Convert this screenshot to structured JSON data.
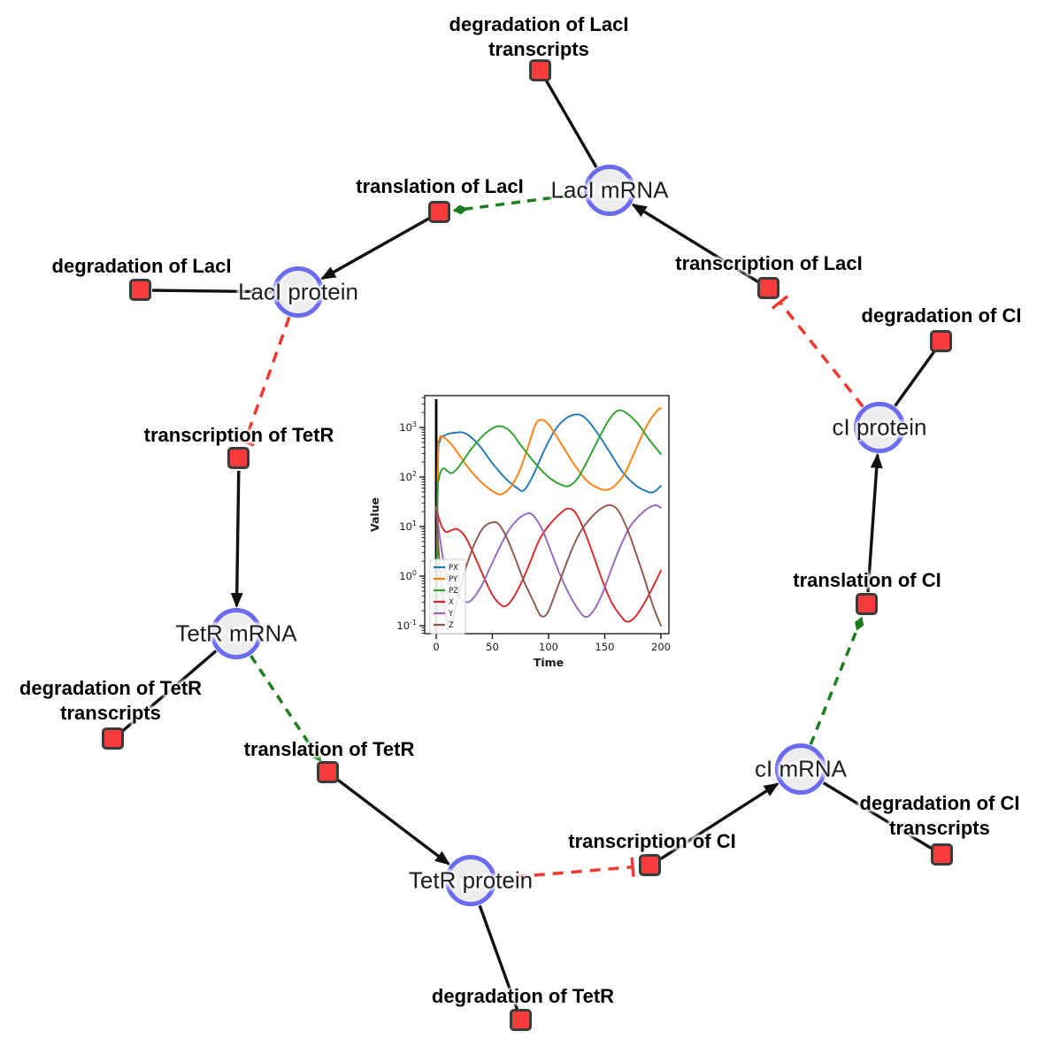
{
  "app": {
    "background": "#ffffff"
  },
  "colors": {
    "species_fill": "#ededed",
    "species_border": "#6b6bf0",
    "reaction_fill": "#f93b3b",
    "reaction_border": "#3a3a3a",
    "edge_black": "#111111",
    "edge_catalysis_green": "#1e7d1e",
    "edge_inhibition_red": "#f03830"
  },
  "diagram": {
    "species": [
      {
        "id": "laci-mrna",
        "label": "LacI mRNA"
      },
      {
        "id": "laci-protein",
        "label": "LacI protein"
      },
      {
        "id": "tetr-mrna",
        "label": "TetR mRNA"
      },
      {
        "id": "tetr-protein",
        "label": "TetR protein"
      },
      {
        "id": "ci-mrna",
        "label": "cI mRNA"
      },
      {
        "id": "ci-protein",
        "label": "cI protein"
      }
    ],
    "reactions": [
      {
        "id": "deg-laci-tx",
        "label_lines": [
          "degradation of LacI",
          "transcripts"
        ]
      },
      {
        "id": "translation-laci",
        "label_lines": [
          "translation of LacI"
        ]
      },
      {
        "id": "transcription-laci",
        "label_lines": [
          "transcription of LacI"
        ]
      },
      {
        "id": "deg-laci",
        "label_lines": [
          "degradation of LacI"
        ]
      },
      {
        "id": "transcription-tetr",
        "label_lines": [
          "transcription of TetR"
        ]
      },
      {
        "id": "deg-tetr-tx",
        "label_lines": [
          "degradation of TetR",
          "transcripts"
        ]
      },
      {
        "id": "translation-tetr",
        "label_lines": [
          "translation of TetR"
        ]
      },
      {
        "id": "deg-tetr",
        "label_lines": [
          "degradation of TetR"
        ]
      },
      {
        "id": "transcription-ci",
        "label_lines": [
          "transcription of CI"
        ]
      },
      {
        "id": "deg-ci-tx",
        "label_lines": [
          "degradation of CI",
          "transcripts"
        ]
      },
      {
        "id": "translation-ci",
        "label_lines": [
          "translation of CI"
        ]
      },
      {
        "id": "deg-ci",
        "label_lines": [
          "degradation of CI"
        ]
      }
    ],
    "edges": [
      {
        "from": "laci-mrna",
        "to": "deg-laci-tx",
        "type": "link"
      },
      {
        "from": "laci-mrna",
        "to": "translation-laci",
        "type": "catalysis"
      },
      {
        "from": "transcription-laci",
        "to": "laci-mrna",
        "type": "production"
      },
      {
        "from": "translation-laci",
        "to": "laci-protein",
        "type": "production"
      },
      {
        "from": "laci-protein",
        "to": "deg-laci",
        "type": "link"
      },
      {
        "from": "laci-protein",
        "to": "transcription-tetr",
        "type": "inhibition"
      },
      {
        "from": "transcription-tetr",
        "to": "tetr-mrna",
        "type": "production"
      },
      {
        "from": "tetr-mrna",
        "to": "deg-tetr-tx",
        "type": "link"
      },
      {
        "from": "tetr-mrna",
        "to": "translation-tetr",
        "type": "catalysis"
      },
      {
        "from": "translation-tetr",
        "to": "tetr-protein",
        "type": "production"
      },
      {
        "from": "tetr-protein",
        "to": "deg-tetr",
        "type": "link"
      },
      {
        "from": "tetr-protein",
        "to": "transcription-ci",
        "type": "inhibition"
      },
      {
        "from": "transcription-ci",
        "to": "ci-mrna",
        "type": "production"
      },
      {
        "from": "ci-mrna",
        "to": "deg-ci-tx",
        "type": "link"
      },
      {
        "from": "ci-mrna",
        "to": "translation-ci",
        "type": "catalysis"
      },
      {
        "from": "translation-ci",
        "to": "ci-protein",
        "type": "production"
      },
      {
        "from": "ci-protein",
        "to": "deg-ci",
        "type": "link"
      },
      {
        "from": "ci-protein",
        "to": "transcription-laci",
        "type": "inhibition"
      }
    ]
  },
  "chart_data": {
    "type": "line",
    "title": "",
    "xlabel": "Time",
    "ylabel": "Value",
    "y_scale": "log10",
    "x_ticks": [
      0,
      50,
      100,
      150,
      200
    ],
    "y_tick_exponents": [
      -1,
      0,
      1,
      2,
      3
    ],
    "xlim": [
      -10,
      209
    ],
    "ylim_log10": [
      -1.16,
      3.61
    ],
    "axvline_x": 0,
    "grid": false,
    "legend": {
      "position": "lower left",
      "entries": [
        "PX",
        "PY",
        "PZ",
        "X",
        "Y",
        "Z"
      ]
    },
    "series": [
      {
        "name": "PX",
        "color": "#1f77b4",
        "points": [
          [
            0.4,
            0.03
          ],
          [
            1.5,
            150
          ],
          [
            3.5,
            540
          ],
          [
            8,
            700
          ],
          [
            16,
            780
          ],
          [
            26,
            760
          ],
          [
            38,
            440
          ],
          [
            50,
            190
          ],
          [
            62,
            92
          ],
          [
            72,
            60
          ],
          [
            78,
            54
          ],
          [
            86,
            105
          ],
          [
            96,
            340
          ],
          [
            106,
            900
          ],
          [
            116,
            1550
          ],
          [
            126,
            1830
          ],
          [
            134,
            1450
          ],
          [
            144,
            740
          ],
          [
            154,
            330
          ],
          [
            166,
            125
          ],
          [
            177,
            70
          ],
          [
            186,
            53
          ],
          [
            193,
            49
          ],
          [
            200,
            66
          ]
        ]
      },
      {
        "name": "PY",
        "color": "#ff7f0e",
        "points": [
          [
            0.4,
            0.03
          ],
          [
            1.3,
            170
          ],
          [
            3,
            580
          ],
          [
            6,
            640
          ],
          [
            12,
            500
          ],
          [
            20,
            290
          ],
          [
            30,
            140
          ],
          [
            42,
            72
          ],
          [
            52,
            49
          ],
          [
            58,
            45
          ],
          [
            66,
            62
          ],
          [
            74,
            130
          ],
          [
            82,
            420
          ],
          [
            88,
            1100
          ],
          [
            93,
            1430
          ],
          [
            100,
            1150
          ],
          [
            110,
            520
          ],
          [
            122,
            190
          ],
          [
            134,
            85
          ],
          [
            144,
            60
          ],
          [
            151,
            55
          ],
          [
            158,
            64
          ],
          [
            168,
            120
          ],
          [
            178,
            380
          ],
          [
            188,
            1150
          ],
          [
            196,
            2100
          ],
          [
            200,
            2450
          ]
        ]
      },
      {
        "name": "PZ",
        "color": "#2ca02c",
        "points": [
          [
            0.4,
            0.03
          ],
          [
            1.2,
            30
          ],
          [
            2.5,
            95
          ],
          [
            6,
            148
          ],
          [
            10,
            132
          ],
          [
            14,
            120
          ],
          [
            20,
            160
          ],
          [
            28,
            290
          ],
          [
            38,
            560
          ],
          [
            48,
            900
          ],
          [
            57,
            1060
          ],
          [
            66,
            830
          ],
          [
            76,
            420
          ],
          [
            88,
            190
          ],
          [
            100,
            100
          ],
          [
            110,
            72
          ],
          [
            118,
            66
          ],
          [
            126,
            95
          ],
          [
            134,
            200
          ],
          [
            144,
            560
          ],
          [
            154,
            1450
          ],
          [
            162,
            2200
          ],
          [
            170,
            1900
          ],
          [
            180,
            1150
          ],
          [
            190,
            550
          ],
          [
            200,
            290
          ]
        ]
      },
      {
        "name": "X",
        "color": "#d62728",
        "points": [
          [
            0,
            25
          ],
          [
            2,
            16
          ],
          [
            5,
            10
          ],
          [
            9,
            7.8
          ],
          [
            14,
            8.5
          ],
          [
            19,
            8.8
          ],
          [
            26,
            6.2
          ],
          [
            34,
            2.6
          ],
          [
            42,
            1.0
          ],
          [
            50,
            0.42
          ],
          [
            57,
            0.27
          ],
          [
            62,
            0.25
          ],
          [
            68,
            0.35
          ],
          [
            76,
            0.75
          ],
          [
            84,
            2.0
          ],
          [
            92,
            5.5
          ],
          [
            101,
            11
          ],
          [
            110,
            18
          ],
          [
            117,
            23
          ],
          [
            124,
            19
          ],
          [
            132,
            8
          ],
          [
            140,
            2.6
          ],
          [
            148,
            0.8
          ],
          [
            156,
            0.3
          ],
          [
            164,
            0.16
          ],
          [
            170,
            0.12
          ],
          [
            177,
            0.15
          ],
          [
            185,
            0.28
          ],
          [
            192,
            0.55
          ],
          [
            200,
            1.3
          ]
        ]
      },
      {
        "name": "Y",
        "color": "#9467bd",
        "points": [
          [
            0,
            25
          ],
          [
            2,
            10
          ],
          [
            5,
            3.2
          ],
          [
            9,
            1.1
          ],
          [
            14,
            0.6
          ],
          [
            20,
            0.4
          ],
          [
            26,
            0.3
          ],
          [
            32,
            0.34
          ],
          [
            40,
            0.62
          ],
          [
            48,
            1.5
          ],
          [
            56,
            3.6
          ],
          [
            64,
            8
          ],
          [
            72,
            13.5
          ],
          [
            80,
            18
          ],
          [
            86,
            17
          ],
          [
            94,
            9
          ],
          [
            102,
            3.2
          ],
          [
            110,
            1.1
          ],
          [
            118,
            0.45
          ],
          [
            126,
            0.22
          ],
          [
            133,
            0.15
          ],
          [
            140,
            0.2
          ],
          [
            148,
            0.45
          ],
          [
            156,
            1.4
          ],
          [
            164,
            4
          ],
          [
            172,
            9.5
          ],
          [
            180,
            16
          ],
          [
            188,
            23
          ],
          [
            195,
            27
          ],
          [
            200,
            24
          ]
        ]
      },
      {
        "name": "Z",
        "color": "#8c564b",
        "points": [
          [
            0,
            25
          ],
          [
            1.5,
            6
          ],
          [
            4,
            0.9
          ],
          [
            7,
            0.28
          ],
          [
            10,
            0.11
          ],
          [
            13,
            0.1
          ],
          [
            17,
            0.22
          ],
          [
            22,
            0.65
          ],
          [
            28,
            1.9
          ],
          [
            35,
            5
          ],
          [
            42,
            9.5
          ],
          [
            49,
            12
          ],
          [
            55,
            11.5
          ],
          [
            62,
            6.5
          ],
          [
            70,
            2.4
          ],
          [
            78,
            0.8
          ],
          [
            86,
            0.33
          ],
          [
            93,
            0.16
          ],
          [
            99,
            0.18
          ],
          [
            106,
            0.45
          ],
          [
            114,
            1.4
          ],
          [
            122,
            4
          ],
          [
            130,
            9
          ],
          [
            140,
            17
          ],
          [
            148,
            24
          ],
          [
            155,
            27
          ],
          [
            162,
            21
          ],
          [
            170,
            9
          ],
          [
            178,
            2.8
          ],
          [
            186,
            0.8
          ],
          [
            193,
            0.25
          ],
          [
            200,
            0.1
          ]
        ]
      }
    ]
  }
}
